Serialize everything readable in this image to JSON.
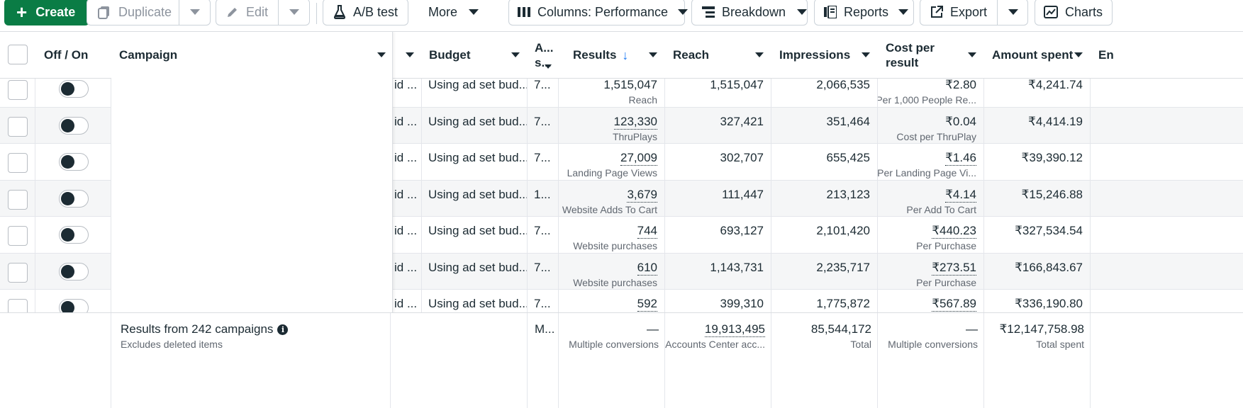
{
  "toolbar": {
    "create": "Create",
    "duplicate": "Duplicate",
    "edit": "Edit",
    "ab_test": "A/B test",
    "more": "More",
    "columns": "Columns: Performance",
    "breakdown": "Breakdown",
    "reports": "Reports",
    "export": "Export",
    "charts": "Charts"
  },
  "columns": {
    "off_on": "Off / On",
    "campaign": "Campaign",
    "budget": "Budget",
    "attribution": "A...\ns...",
    "results": "Results",
    "reach": "Reach",
    "impressions": "Impressions",
    "cost_per_result": "Cost per\nresult",
    "amount_spent": "Amount spent",
    "ends": "En"
  },
  "rows": [
    {
      "bid": "id ...",
      "budget": "Using ad set bud...",
      "attr": "7...",
      "results": "1,515,047",
      "results_type": "Reach",
      "reach": "1,515,047",
      "impressions": "2,066,535",
      "cost": "₹2.80",
      "cost_type": "Per 1,000 People Re...",
      "spent": "₹4,241.74"
    },
    {
      "bid": "id ...",
      "budget": "Using ad set bud...",
      "attr": "7...",
      "results": "123,330",
      "results_type": "ThruPlays",
      "reach": "327,421",
      "impressions": "351,464",
      "cost": "₹0.04",
      "cost_type": "Cost per ThruPlay",
      "spent": "₹4,414.19"
    },
    {
      "bid": "id ...",
      "budget": "Using ad set bud...",
      "attr": "7...",
      "results": "27,009",
      "results_type": "Landing Page Views",
      "reach": "302,707",
      "impressions": "655,425",
      "cost": "₹1.46",
      "cost_type": "Per Landing Page Vi...",
      "spent": "₹39,390.12"
    },
    {
      "bid": "id ...",
      "budget": "Using ad set bud...",
      "attr": "1...",
      "results": "3,679",
      "results_type": "Website Adds To Cart",
      "reach": "111,447",
      "impressions": "213,123",
      "cost": "₹4.14",
      "cost_type": "Per Add To Cart",
      "spent": "₹15,246.88"
    },
    {
      "bid": "id ...",
      "budget": "Using ad set bud...",
      "attr": "7...",
      "results": "744",
      "results_type": "Website purchases",
      "reach": "693,127",
      "impressions": "2,101,420",
      "cost": "₹440.23",
      "cost_type": "Per Purchase",
      "spent": "₹327,534.54"
    },
    {
      "bid": "id ...",
      "budget": "Using ad set bud...",
      "attr": "7...",
      "results": "610",
      "results_type": "Website purchases",
      "reach": "1,143,731",
      "impressions": "2,235,717",
      "cost": "₹273.51",
      "cost_type": "Per Purchase",
      "spent": "₹166,843.67"
    },
    {
      "bid": "id ...",
      "budget": "Using ad set bud...",
      "attr": "7...",
      "results": "592",
      "results_type": "",
      "reach": "399,310",
      "impressions": "1,775,872",
      "cost": "₹567.89",
      "cost_type": "",
      "spent": "₹336,190.80"
    }
  ],
  "footer": {
    "summary": "Results from 242 campaigns",
    "summary_sub": "Excludes deleted items",
    "attr": "M...",
    "results": "—",
    "results_sub": "Multiple conversions",
    "reach": "19,913,495",
    "reach_sub": "Accounts Center acc...",
    "impressions": "85,544,172",
    "impressions_sub": "Total",
    "cost": "—",
    "cost_sub": "Multiple conversions",
    "spent": "₹12,147,758.98",
    "spent_sub": "Total spent"
  },
  "colors": {
    "primary": "#0a7c45",
    "sort_arrow": "#1877f2",
    "text": "#1c2b33",
    "muted": "#606770"
  }
}
